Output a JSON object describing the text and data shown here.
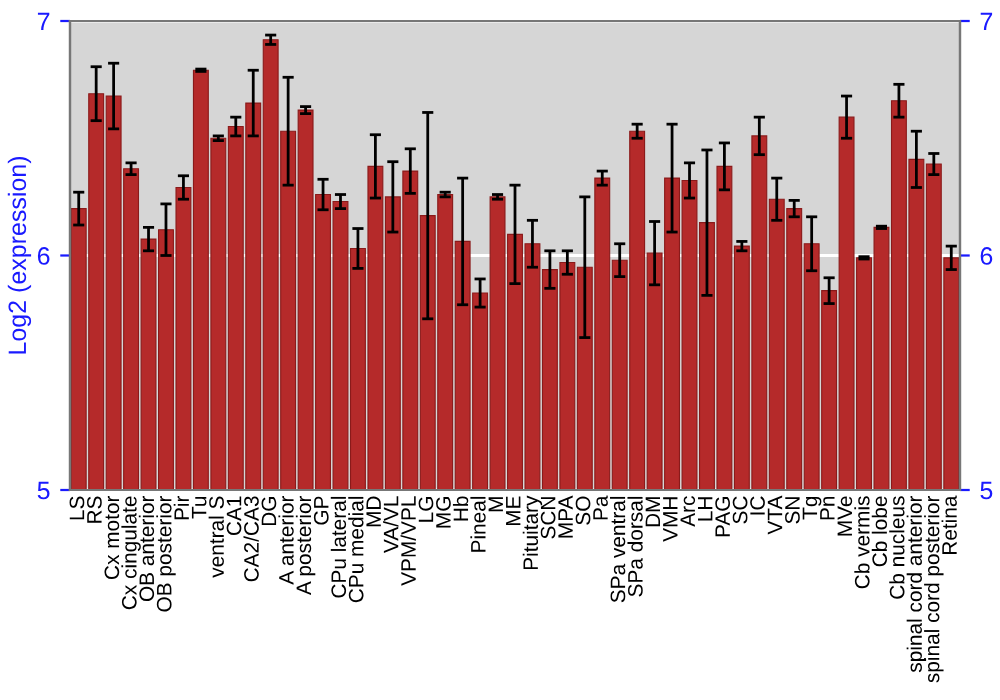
{
  "chart_data": {
    "type": "bar",
    "ylabel": "Log2 (expression)",
    "categories": [
      "LS",
      "RS",
      "Cx motor",
      "Cx cingulate",
      "OB anterior",
      "OB posterior",
      "Pir",
      "Tu",
      "ventral S",
      "CA1",
      "CA2/CA3",
      "DG",
      "A anterior",
      "A posterior",
      "GP",
      "CPu lateral",
      "CPu medial",
      "MD",
      "VA/VL",
      "VPM/VPL",
      "LG",
      "MG",
      "Hb",
      "Pineal",
      "M",
      "ME",
      "Pituitary",
      "SCN",
      "MPA",
      "SO",
      "Pa",
      "SPa ventral",
      "SPa dorsal",
      "DM",
      "VMH",
      "Arc",
      "LH",
      "PAG",
      "SC",
      "IC",
      "VTA",
      "SN",
      "Tg",
      "Pn",
      "MVe",
      "Cb vermis",
      "Cb lobe",
      "Cb nucleus",
      "spinal cord anterior",
      "spinal cord posterior",
      "Retina"
    ],
    "values": [
      6.2,
      6.69,
      6.68,
      6.37,
      6.07,
      6.11,
      6.29,
      6.79,
      6.5,
      6.55,
      6.65,
      6.92,
      6.53,
      6.62,
      6.26,
      6.23,
      6.03,
      6.38,
      6.25,
      6.36,
      6.17,
      6.26,
      6.06,
      5.84,
      6.25,
      6.09,
      6.05,
      5.94,
      5.97,
      5.95,
      6.33,
      5.98,
      6.53,
      6.01,
      6.33,
      6.32,
      6.14,
      6.38,
      6.04,
      6.51,
      6.24,
      6.2,
      6.05,
      5.85,
      6.59,
      5.99,
      6.12,
      6.66,
      6.41,
      6.39,
      5.99
    ],
    "errors": [
      0.07,
      0.115,
      0.14,
      0.025,
      0.05,
      0.11,
      0.05,
      0.005,
      0.01,
      0.04,
      0.14,
      0.02,
      0.23,
      0.015,
      0.065,
      0.03,
      0.085,
      0.135,
      0.15,
      0.095,
      0.44,
      0.01,
      0.27,
      0.06,
      0.01,
      0.21,
      0.1,
      0.08,
      0.05,
      0.3,
      0.03,
      0.07,
      0.03,
      0.135,
      0.23,
      0.075,
      0.31,
      0.1,
      0.02,
      0.08,
      0.09,
      0.035,
      0.115,
      0.055,
      0.09,
      0.005,
      0.005,
      0.07,
      0.12,
      0.045,
      0.05
    ],
    "color": "#b52a2a",
    "ylim": [
      5,
      7
    ],
    "yticks": [
      5,
      6,
      7
    ],
    "y2lim": [
      5,
      7
    ],
    "y2ticks": [
      5,
      6,
      7
    ],
    "grid": "y"
  }
}
